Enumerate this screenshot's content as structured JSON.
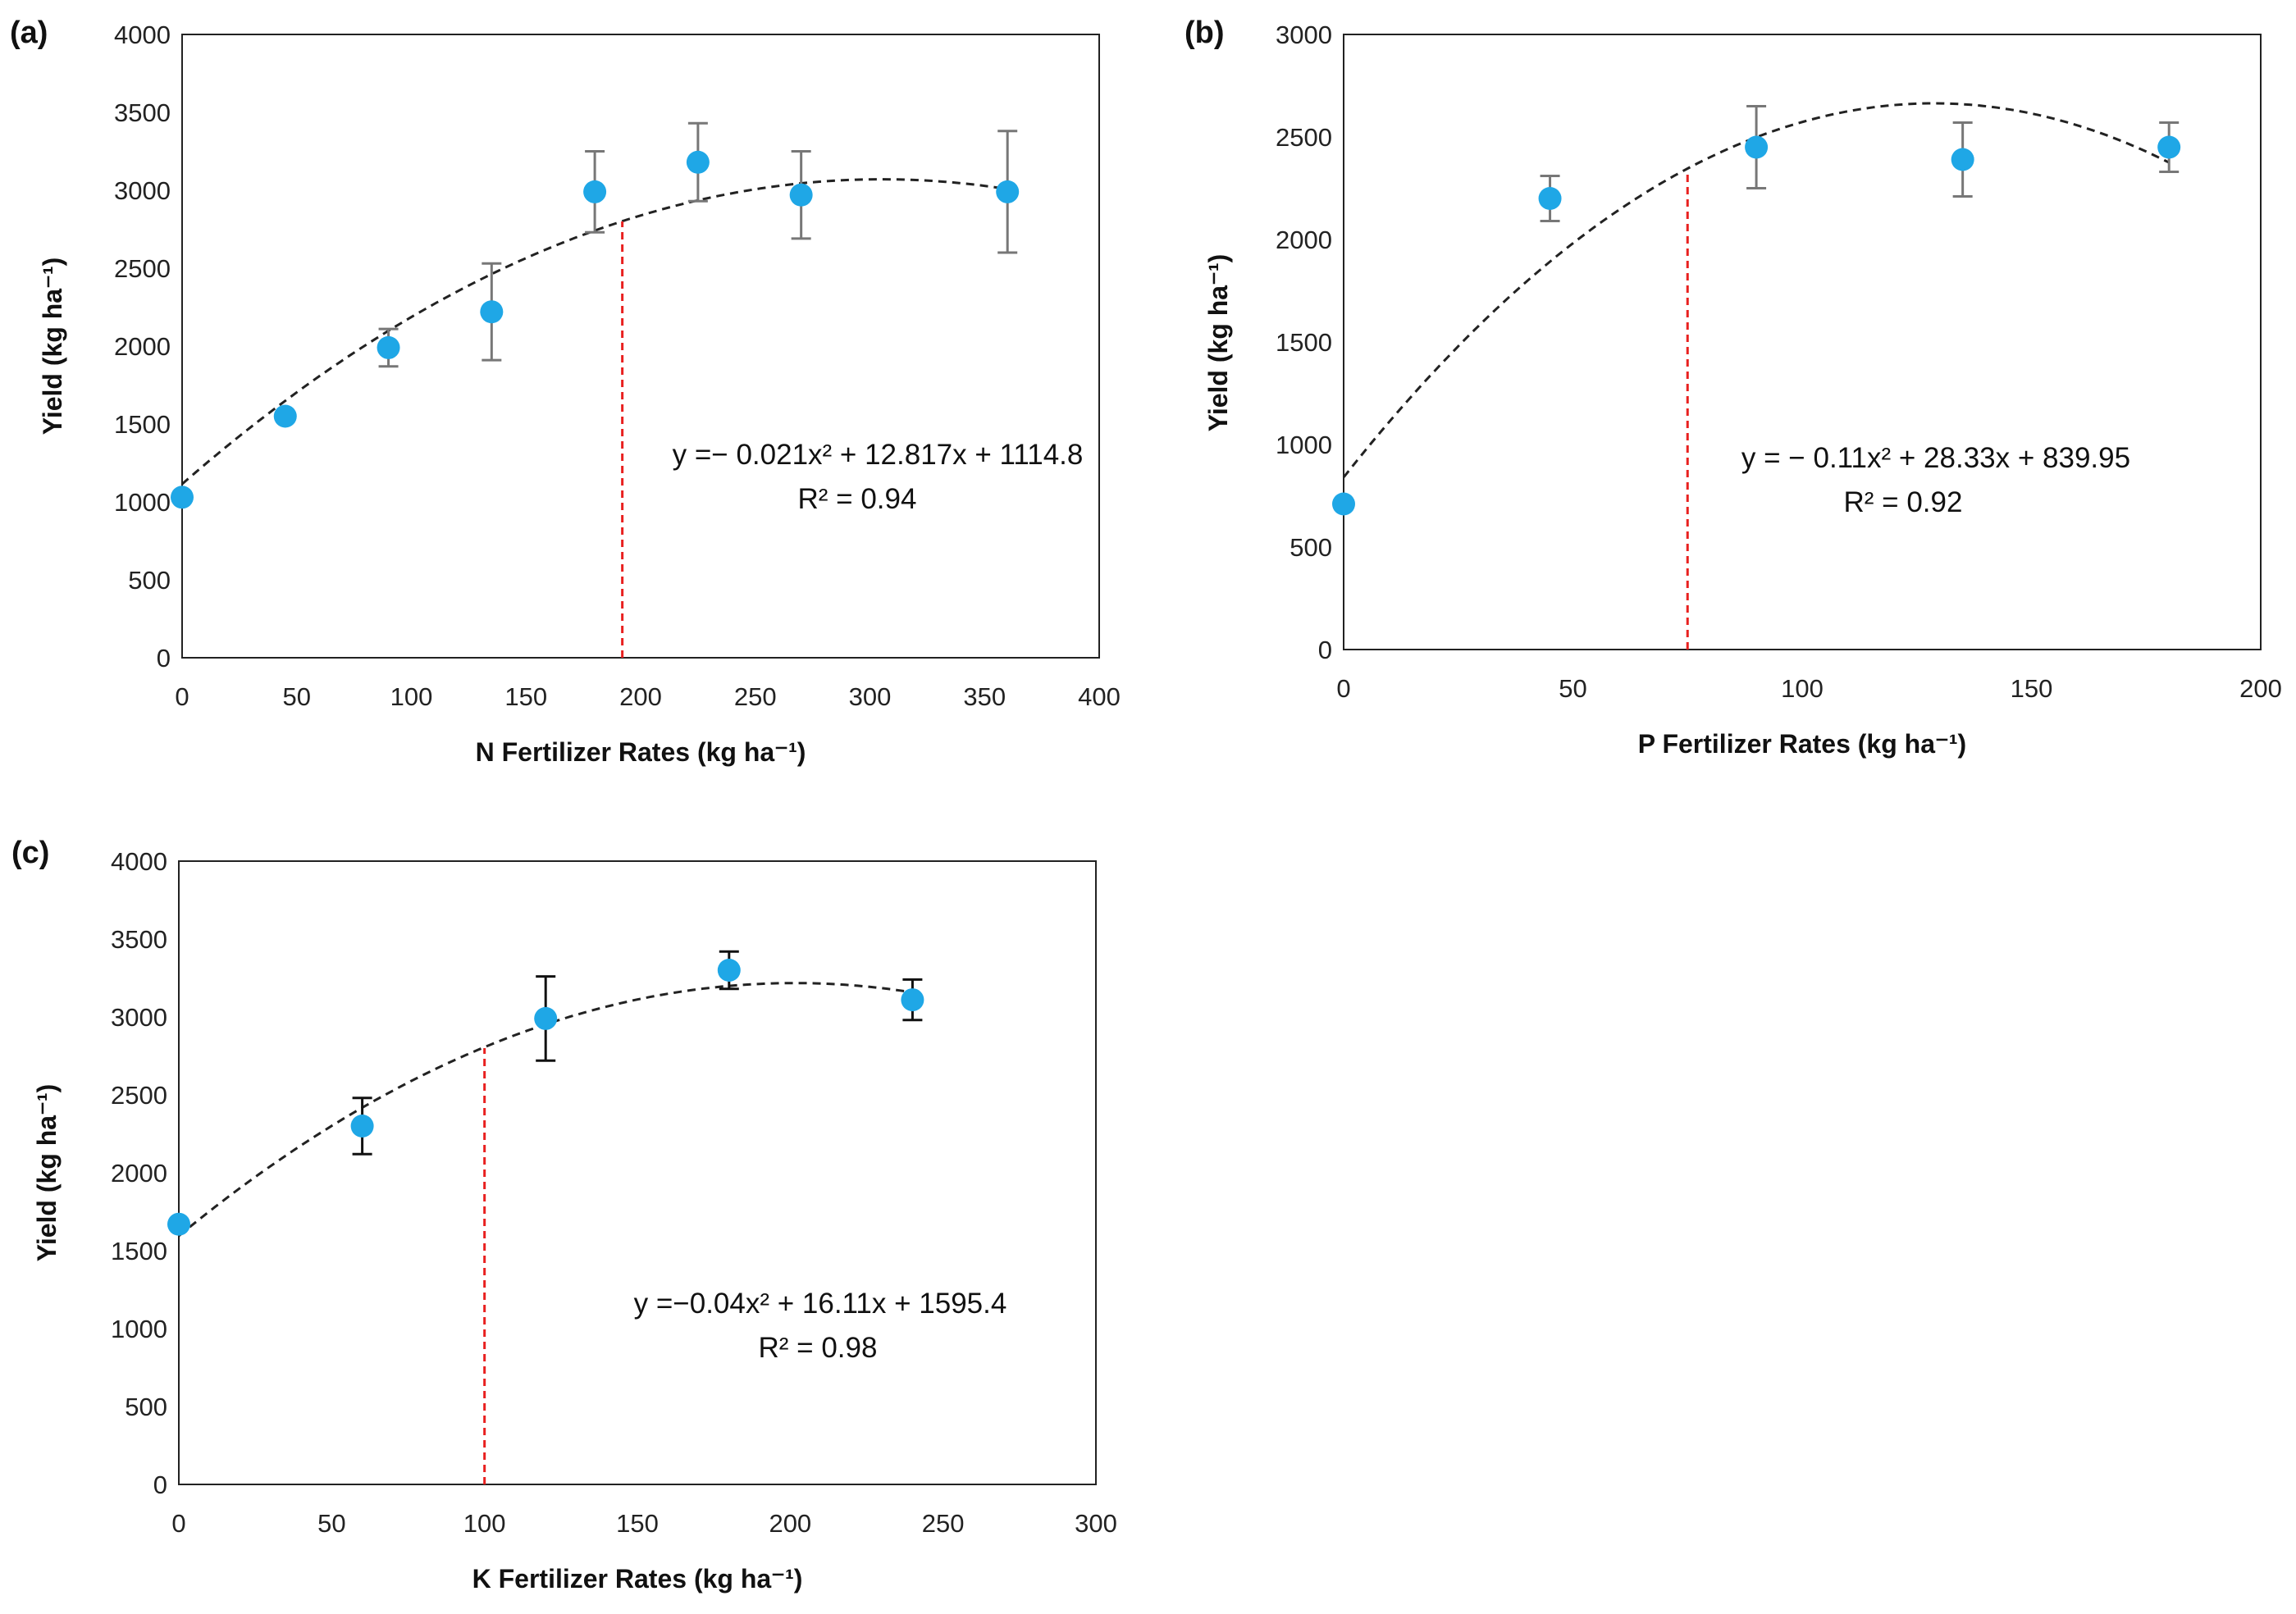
{
  "colors": {
    "point": "#1fa7e6",
    "fit_line": "#222222",
    "optimum_line": "#e8201f",
    "errorbar_a": "#777777",
    "errorbar_b": "#777777",
    "errorbar_c": "#111111"
  },
  "chart_data": [
    {
      "id": "a",
      "type": "scatter",
      "panel_label": "(a)",
      "xlabel": "N Fertilizer Rates (kg ha⁻¹)",
      "ylabel": "Yield (kg ha⁻¹)",
      "xlim": [
        0,
        400
      ],
      "ylim": [
        0,
        4000
      ],
      "xticks": [
        0,
        50,
        100,
        150,
        200,
        250,
        300,
        350,
        400
      ],
      "yticks": [
        0,
        500,
        1000,
        1500,
        2000,
        2500,
        3000,
        3500,
        4000
      ],
      "x": [
        0,
        45,
        90,
        135,
        180,
        225,
        270,
        360
      ],
      "y": [
        1030,
        1550,
        1990,
        2220,
        2990,
        3180,
        2970,
        2990
      ],
      "err": [
        0,
        0,
        120,
        310,
        260,
        250,
        280,
        390
      ],
      "fit": {
        "a": -0.021,
        "b": 12.817,
        "c": 1114.8
      },
      "equation": "y =− 0.021x² + 12.817x + 1114.8",
      "r2": "R² = 0.94",
      "optimum_x": 192,
      "optimum_y": 2800
    },
    {
      "id": "b",
      "type": "scatter",
      "panel_label": "(b)",
      "xlabel": "P Fertilizer Rates (kg ha⁻¹)",
      "ylabel": "Yield (kg ha⁻¹)",
      "xlim": [
        0,
        200
      ],
      "ylim": [
        0,
        3000
      ],
      "xticks": [
        0,
        50,
        100,
        150,
        200
      ],
      "yticks": [
        0,
        500,
        1000,
        1500,
        2000,
        2500,
        3000
      ],
      "x": [
        0,
        45,
        90,
        135,
        180
      ],
      "y": [
        710,
        2200,
        2450,
        2390,
        2450
      ],
      "err": [
        0,
        110,
        200,
        180,
        120
      ],
      "fit": {
        "a": -0.11,
        "b": 28.33,
        "c": 839.95
      },
      "equation": "y = − 0.11x² + 28.33x + 839.95",
      "r2": "R² = 0.92",
      "optimum_x": 75,
      "optimum_y": 2330
    },
    {
      "id": "c",
      "type": "scatter",
      "panel_label": "(c)",
      "xlabel": "K Fertilizer Rates (kg ha⁻¹)",
      "ylabel": "Yield (kg ha⁻¹)",
      "xlim": [
        0,
        300
      ],
      "ylim": [
        0,
        4000
      ],
      "xticks": [
        0,
        50,
        100,
        150,
        200,
        250,
        300
      ],
      "yticks": [
        0,
        500,
        1000,
        1500,
        2000,
        2500,
        3000,
        3500,
        4000
      ],
      "x": [
        0,
        60,
        120,
        180,
        240
      ],
      "y": [
        1670,
        2300,
        2990,
        3300,
        3110
      ],
      "err": [
        0,
        180,
        270,
        120,
        130
      ],
      "fit": {
        "a": -0.04,
        "b": 16.11,
        "c": 1595.4
      },
      "equation": "y =−0.04x² + 16.11x + 1595.4",
      "r2": "R² = 0.98",
      "optimum_x": 100,
      "optimum_y": 2800
    }
  ]
}
